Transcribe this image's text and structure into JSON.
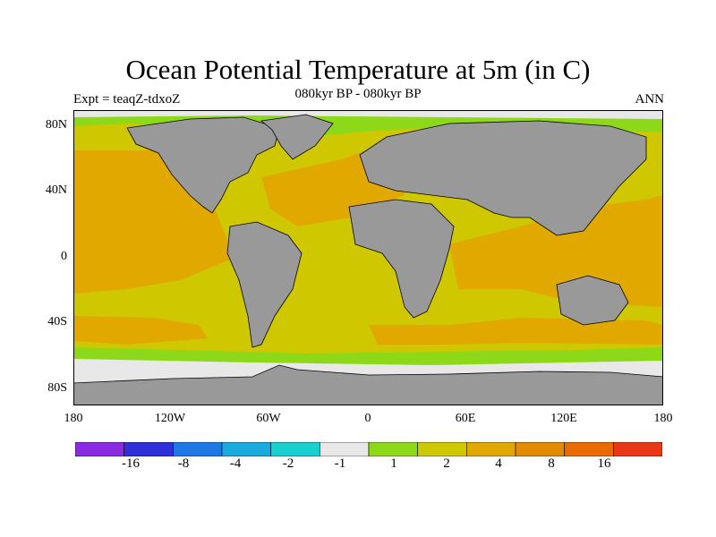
{
  "header": {
    "title": "Ocean Potential Temperature at 5m (in C)",
    "subtitle_left": "Expt = teaqZ-tdxoZ",
    "subtitle_center": "080kyr BP - 080kyr BP",
    "subtitle_right": "ANN"
  },
  "map": {
    "lat_ticks": [
      "80N",
      "40N",
      "0",
      "40S",
      "80S"
    ],
    "lon_ticks": [
      "180",
      "120W",
      "60W",
      "0",
      "60E",
      "120E",
      "180"
    ],
    "land_color": "#999999",
    "coast_color": "#000000"
  },
  "colorbar": {
    "colors": [
      "#8a2be2",
      "#3030d8",
      "#1e78e6",
      "#19aade",
      "#19cfcf",
      "#e8e8e8",
      "#8ed81a",
      "#cfc800",
      "#e1a800",
      "#e28a00",
      "#e86a00",
      "#e83818"
    ],
    "labels": [
      "-16",
      "-8",
      "-4",
      "-2",
      "-1",
      "1",
      "2",
      "4",
      "8",
      "16"
    ]
  }
}
